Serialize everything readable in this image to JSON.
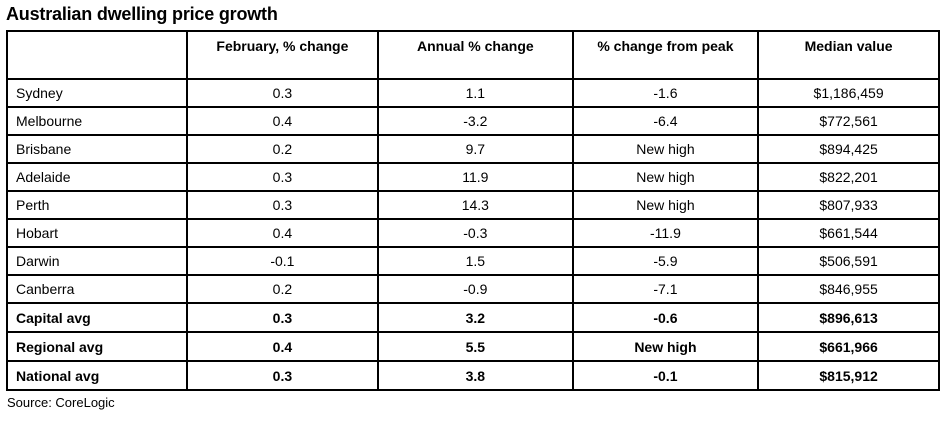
{
  "title": "Australian dwelling price growth",
  "source": "Source: CoreLogic",
  "colors": {
    "border": "#000000",
    "text": "#000000",
    "background": "#ffffff"
  },
  "chart_data": {
    "type": "table",
    "title": "Australian dwelling price growth",
    "columns": [
      "",
      "February, % change",
      "Annual % change",
      "% change from peak",
      "Median value"
    ],
    "rows": [
      {
        "cells": [
          "Sydney",
          "0.3",
          "1.1",
          "-1.6",
          "$1,186,459"
        ],
        "bold": false
      },
      {
        "cells": [
          "Melbourne",
          "0.4",
          "-3.2",
          "-6.4",
          "$772,561"
        ],
        "bold": false
      },
      {
        "cells": [
          "Brisbane",
          "0.2",
          "9.7",
          "New high",
          "$894,425"
        ],
        "bold": false
      },
      {
        "cells": [
          "Adelaide",
          "0.3",
          "11.9",
          "New high",
          "$822,201"
        ],
        "bold": false
      },
      {
        "cells": [
          "Perth",
          "0.3",
          "14.3",
          "New high",
          "$807,933"
        ],
        "bold": false
      },
      {
        "cells": [
          "Hobart",
          "0.4",
          "-0.3",
          "-11.9",
          "$661,544"
        ],
        "bold": false
      },
      {
        "cells": [
          "Darwin",
          "-0.1",
          "1.5",
          "-5.9",
          "$506,591"
        ],
        "bold": false
      },
      {
        "cells": [
          "Canberra",
          "0.2",
          "-0.9",
          "-7.1",
          "$846,955"
        ],
        "bold": false
      },
      {
        "cells": [
          "Capital avg",
          "0.3",
          "3.2",
          "-0.6",
          "$896,613"
        ],
        "bold": true
      },
      {
        "cells": [
          "Regional avg",
          "0.4",
          "5.5",
          "New high",
          "$661,966"
        ],
        "bold": true
      },
      {
        "cells": [
          "National avg",
          "0.3",
          "3.8",
          "-0.1",
          "$815,912"
        ],
        "bold": true
      }
    ],
    "footnote": "Source: CoreLogic"
  }
}
